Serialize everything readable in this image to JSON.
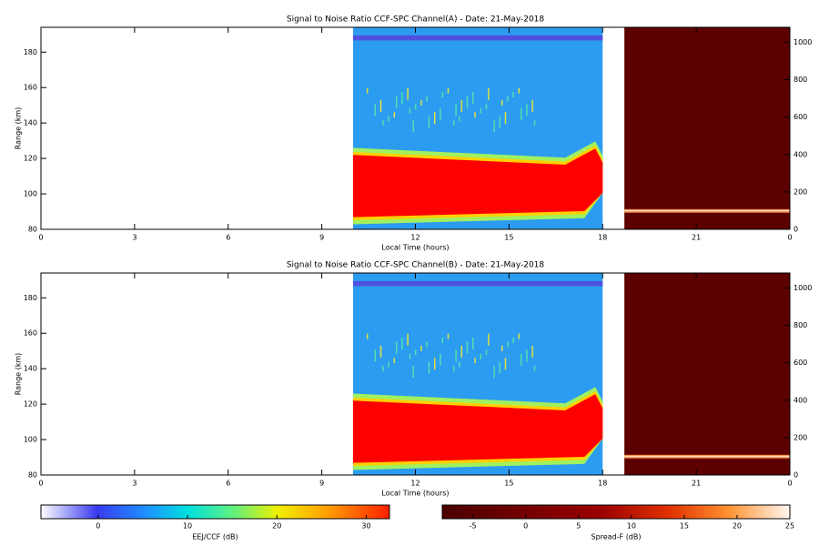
{
  "chart_data": [
    {
      "type": "heatmap",
      "title": "Signal to Noise Ratio CCF-SPC Channel(A) - Date: 21-May-2018",
      "xlabel": "Local Time (hours)",
      "ylabel": "Range (km)",
      "xlim": [
        0,
        24
      ],
      "xticks": [
        0,
        3,
        6,
        9,
        12,
        15,
        18,
        21,
        {
          "value": 24,
          "label": "0"
        }
      ],
      "ylim": [
        80,
        194
      ],
      "yticks": [
        80,
        100,
        120,
        140,
        160,
        180
      ],
      "y2lim": [
        0,
        1080
      ],
      "y2ticks": [
        0,
        200,
        400,
        600,
        800,
        1000
      ]
    },
    {
      "type": "heatmap",
      "title": "Signal to Noise Ratio CCF-SPC Channel(B) - Date: 21-May-2018",
      "xlabel": "Local Time (hours)",
      "ylabel": "Range (km)",
      "xlim": [
        0,
        24
      ],
      "xticks": [
        0,
        3,
        6,
        9,
        12,
        15,
        18,
        21,
        {
          "value": 24,
          "label": "0"
        }
      ],
      "ylim": [
        80,
        194
      ],
      "yticks": [
        80,
        100,
        120,
        140,
        160,
        180
      ],
      "y2lim": [
        0,
        1080
      ],
      "y2ticks": [
        0,
        200,
        400,
        600,
        800,
        1000
      ]
    }
  ],
  "colorbars": [
    {
      "label": "EEJ/CCF (dB)",
      "lim": [
        -6.4,
        32.6
      ],
      "ticks": [
        0,
        10,
        20,
        30
      ]
    },
    {
      "label": "Spread-F (dB)",
      "lim": [
        -7.9,
        25
      ],
      "ticks": [
        -5,
        0,
        5,
        10,
        15,
        20,
        25
      ]
    }
  ]
}
